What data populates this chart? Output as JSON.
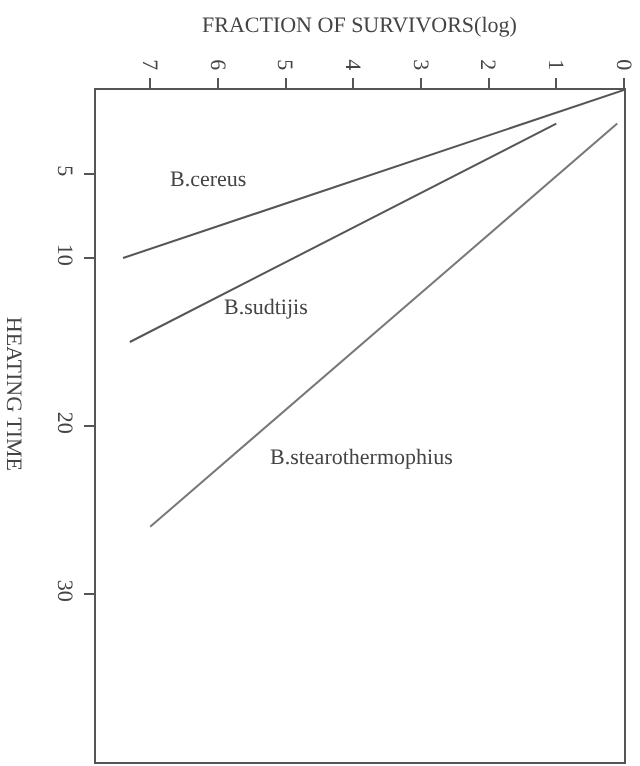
{
  "chart_data": {
    "type": "line",
    "xlabel": "FRACTION OF SURVIVORS(log)",
    "ylabel": "HEATING TIME",
    "xlim": [
      7.8,
      0
    ],
    "xticks": [
      7,
      6,
      5,
      4,
      3,
      2,
      1,
      0
    ],
    "ylim": [
      40,
      0
    ],
    "yticks": [
      5,
      10,
      20,
      30
    ],
    "legend": false,
    "marker": "none",
    "line_style": "solid",
    "series": [
      {
        "name": "B.cereus",
        "color": "#555555",
        "x": [
          0,
          7.4
        ],
        "values": [
          0,
          10
        ]
      },
      {
        "name": "B.sudtijis",
        "color": "#555555",
        "x": [
          1,
          7.3
        ],
        "values": [
          2,
          15
        ]
      },
      {
        "name": "B.stearothermophius",
        "color": "#777777",
        "x": [
          0.1,
          7
        ],
        "values": [
          2,
          26
        ]
      }
    ]
  }
}
